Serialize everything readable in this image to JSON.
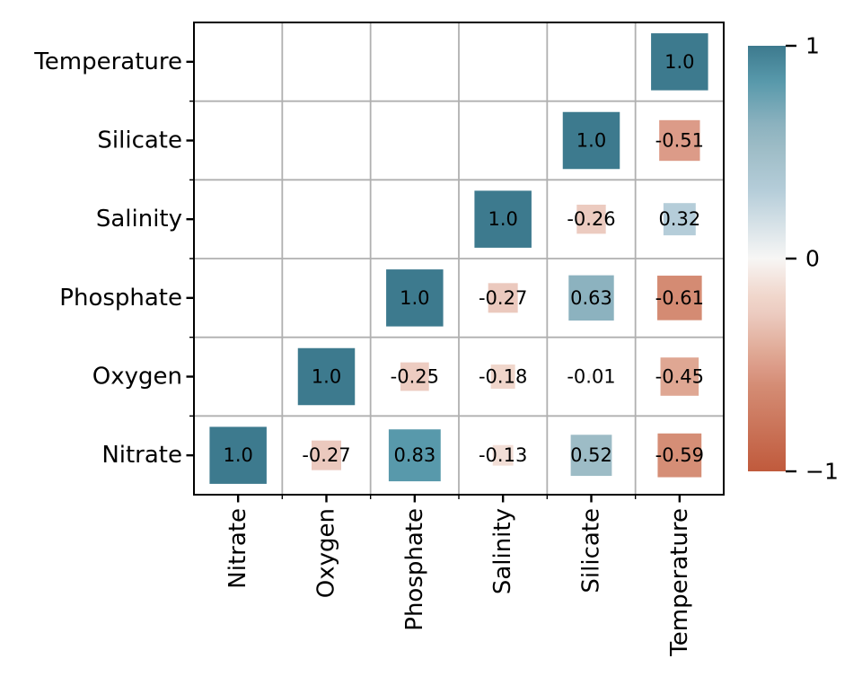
{
  "figure": {
    "background": "#ffffff",
    "text_color": "#000000"
  },
  "chart_data": {
    "type": "heatmap",
    "subtype": "correlation-matrix-sized-squares",
    "title": "",
    "xlabel": "",
    "ylabel": "",
    "x_tick_labels": [
      "Nitrate",
      "Oxygen",
      "Phosphate",
      "Salinity",
      "Silicate",
      "Temperature"
    ],
    "y_tick_labels": [
      "Temperature",
      "Silicate",
      "Salinity",
      "Phosphate",
      "Oxygen",
      "Nitrate"
    ],
    "value_range": [
      -1,
      1
    ],
    "grid": true,
    "size_encoding": "square-side-proportional-to-sqrt-abs-value",
    "cells": [
      {
        "row": "Temperature",
        "col": "Temperature",
        "value": 1.0,
        "label": "1.0"
      },
      {
        "row": "Silicate",
        "col": "Silicate",
        "value": 1.0,
        "label": "1.0"
      },
      {
        "row": "Silicate",
        "col": "Temperature",
        "value": -0.51,
        "label": "-0.51"
      },
      {
        "row": "Salinity",
        "col": "Salinity",
        "value": 1.0,
        "label": "1.0"
      },
      {
        "row": "Salinity",
        "col": "Silicate",
        "value": -0.26,
        "label": "-0.26"
      },
      {
        "row": "Salinity",
        "col": "Temperature",
        "value": 0.32,
        "label": "0.32"
      },
      {
        "row": "Phosphate",
        "col": "Phosphate",
        "value": 1.0,
        "label": "1.0"
      },
      {
        "row": "Phosphate",
        "col": "Salinity",
        "value": -0.27,
        "label": "-0.27"
      },
      {
        "row": "Phosphate",
        "col": "Silicate",
        "value": 0.63,
        "label": "0.63"
      },
      {
        "row": "Phosphate",
        "col": "Temperature",
        "value": -0.61,
        "label": "-0.61"
      },
      {
        "row": "Oxygen",
        "col": "Oxygen",
        "value": 1.0,
        "label": "1.0"
      },
      {
        "row": "Oxygen",
        "col": "Phosphate",
        "value": -0.25,
        "label": "-0.25"
      },
      {
        "row": "Oxygen",
        "col": "Salinity",
        "value": -0.18,
        "label": "-0.18"
      },
      {
        "row": "Oxygen",
        "col": "Silicate",
        "value": -0.01,
        "label": "-0.01"
      },
      {
        "row": "Oxygen",
        "col": "Temperature",
        "value": -0.45,
        "label": "-0.45"
      },
      {
        "row": "Nitrate",
        "col": "Nitrate",
        "value": 1.0,
        "label": "1.0"
      },
      {
        "row": "Nitrate",
        "col": "Oxygen",
        "value": -0.27,
        "label": "-0.27"
      },
      {
        "row": "Nitrate",
        "col": "Phosphate",
        "value": 0.83,
        "label": "0.83"
      },
      {
        "row": "Nitrate",
        "col": "Salinity",
        "value": -0.13,
        "label": "-0.13"
      },
      {
        "row": "Nitrate",
        "col": "Silicate",
        "value": 0.52,
        "label": "0.52"
      },
      {
        "row": "Nitrate",
        "col": "Temperature",
        "value": -0.59,
        "label": "-0.59"
      }
    ],
    "colorbar": {
      "position": "right",
      "tick_values": [
        1,
        0,
        -1
      ],
      "tick_labels": [
        "1",
        "0",
        "−1"
      ]
    },
    "colormap_anchors": [
      [
        -1.0,
        "#c05a3c"
      ],
      [
        -0.6,
        "#d48c74"
      ],
      [
        -0.51,
        "#dc9b88"
      ],
      [
        -0.45,
        "#dfa793"
      ],
      [
        -0.26,
        "#eccbc0"
      ],
      [
        -0.18,
        "#f0d6cb"
      ],
      [
        -0.13,
        "#f2ded6"
      ],
      [
        0.0,
        "#f7f6f5"
      ],
      [
        0.32,
        "#b5cdd9"
      ],
      [
        0.52,
        "#9dbcc6"
      ],
      [
        0.63,
        "#8cb2bf"
      ],
      [
        0.83,
        "#5899ab"
      ],
      [
        1.0,
        "#3d7a8e"
      ]
    ],
    "colors": {
      "positive_end": "#3d7a8e",
      "negative_end": "#c05a3c",
      "zero": "#f7f6f5",
      "grid_line": "#b0b0b0",
      "frame": "#000000"
    }
  }
}
